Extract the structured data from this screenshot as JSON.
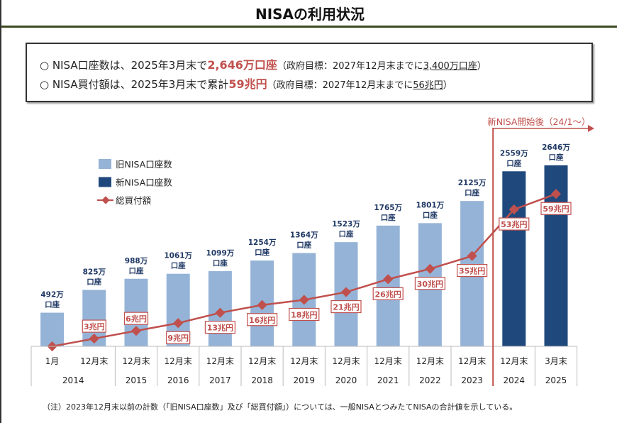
{
  "title": "NISAの利用状況",
  "summary": [
    {
      "bullet": "○",
      "pre": "NISA口座数は、2025年3月末で",
      "highlight": "2,646万口座",
      "note_pre": "（政府目標：2027年12月末までに",
      "note_target": "3,400万口座",
      "note_post": "）"
    },
    {
      "bullet": "○",
      "pre": "NISA買付額は、2025年3月末で累計",
      "highlight": "59兆円",
      "note_pre": "（政府目標：2027年12月末までに",
      "note_target": "56兆円",
      "note_post": "）"
    }
  ],
  "footnote": "（注）2023年12月末以前の計数（「旧NISA口座数」及び「総買付額」）については、一般NISAとつみたてNISAの合計値を示している。",
  "chart_data": {
    "type": "bar+line",
    "categories": [
      "1月",
      "12月末",
      "12月末",
      "12月末",
      "12月末",
      "12月末",
      "12月末",
      "12月末",
      "12月末",
      "12月末",
      "12月末",
      "12月末",
      "3月末"
    ],
    "years": [
      {
        "label": "2014",
        "span": 2
      },
      {
        "label": "2015",
        "span": 1
      },
      {
        "label": "2016",
        "span": 1
      },
      {
        "label": "2017",
        "span": 1
      },
      {
        "label": "2018",
        "span": 1
      },
      {
        "label": "2019",
        "span": 1
      },
      {
        "label": "2020",
        "span": 1
      },
      {
        "label": "2021",
        "span": 1
      },
      {
        "label": "2022",
        "span": 1
      },
      {
        "label": "2023",
        "span": 1
      },
      {
        "label": "2024",
        "span": 1
      },
      {
        "label": "2025",
        "span": 1
      }
    ],
    "legend": [
      "旧NISA口座数",
      "新NISA口座数",
      "総買付額"
    ],
    "legend_position": "top-left",
    "series": [
      {
        "name": "旧NISA口座数",
        "type": "bar",
        "color": "#95b3d7",
        "values": [
          492,
          825,
          988,
          1061,
          1099,
          1254,
          1364,
          1523,
          1765,
          1801,
          2125,
          null,
          null
        ],
        "unit_label": "万\n口座"
      },
      {
        "name": "新NISA口座数",
        "type": "bar",
        "color": "#1f497d",
        "values": [
          null,
          null,
          null,
          null,
          null,
          null,
          null,
          null,
          null,
          null,
          null,
          2559,
          2646
        ],
        "unit_label": "万\n口座"
      },
      {
        "name": "総買付額",
        "type": "line",
        "color": "#c0504d",
        "values": [
          0,
          3,
          6,
          9,
          13,
          16,
          18,
          21,
          26,
          30,
          35,
          53,
          59
        ],
        "labels": [
          "",
          "3兆円",
          "6兆円",
          "9兆円",
          "13兆円",
          "16兆円",
          "18兆円",
          "21兆円",
          "26兆円",
          "30兆円",
          "35兆円",
          "53兆円",
          "59兆円"
        ]
      }
    ],
    "annotation": "新NISA開始後（24/1～）",
    "grid": false
  }
}
